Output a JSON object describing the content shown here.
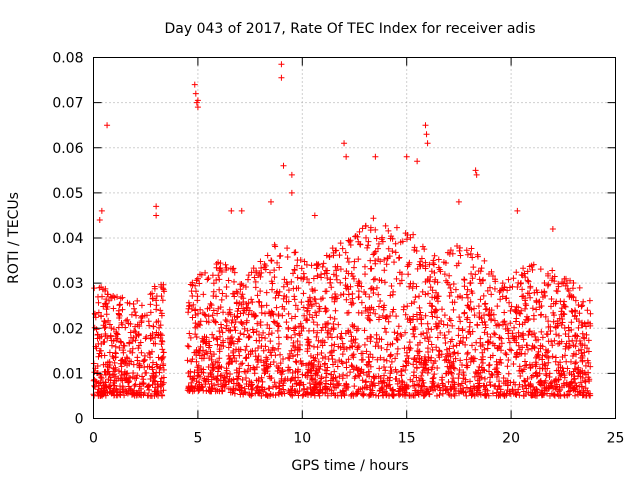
{
  "chart_data": {
    "type": "scatter",
    "title": "Day 043 of 2017, Rate Of TEC Index for receiver adis",
    "xlabel": "GPS time / hours",
    "ylabel": "ROTI / TECUs",
    "xlim": [
      0,
      25
    ],
    "ylim": [
      0,
      0.08
    ],
    "x_ticks": [
      "0",
      "5",
      "10",
      "15",
      "20",
      "25"
    ],
    "y_ticks": [
      "0",
      "0.01",
      "0.02",
      "0.03",
      "0.04",
      "0.05",
      "0.06",
      "0.07",
      "0.08"
    ],
    "grid": true,
    "legend": "none",
    "marker": "+",
    "color": "#ff0000",
    "density_profile": {
      "note_hours": [
        0.0,
        1.0,
        2.0,
        3.0,
        3.3,
        4.5,
        6.0,
        7.5,
        9.0,
        10.5,
        12.0,
        13.5,
        15.0,
        16.5,
        18.0,
        19.5,
        21.0,
        22.5,
        23.8
      ],
      "typical_low": [
        0.005,
        0.005,
        0.005,
        0.005,
        null,
        0.006,
        0.006,
        0.005,
        0.005,
        0.005,
        0.005,
        0.005,
        0.005,
        0.005,
        0.005,
        0.005,
        0.005,
        0.005,
        0.005
      ],
      "typical_high": [
        0.03,
        0.028,
        0.026,
        0.03,
        null,
        0.03,
        0.035,
        0.033,
        0.04,
        0.034,
        0.04,
        0.045,
        0.042,
        0.036,
        0.04,
        0.03,
        0.035,
        0.032,
        0.027
      ]
    },
    "data_gap_hours": [
      3.4,
      4.5
    ],
    "outliers": [
      {
        "x": 0.3,
        "y": 0.044
      },
      {
        "x": 0.4,
        "y": 0.046
      },
      {
        "x": 0.65,
        "y": 0.065
      },
      {
        "x": 3.0,
        "y": 0.047
      },
      {
        "x": 3.0,
        "y": 0.045
      },
      {
        "x": 4.85,
        "y": 0.074
      },
      {
        "x": 4.9,
        "y": 0.072
      },
      {
        "x": 4.95,
        "y": 0.07
      },
      {
        "x": 5.0,
        "y": 0.069
      },
      {
        "x": 5.0,
        "y": 0.0705
      },
      {
        "x": 9.0,
        "y": 0.0785
      },
      {
        "x": 9.0,
        "y": 0.0755
      },
      {
        "x": 9.1,
        "y": 0.056
      },
      {
        "x": 9.5,
        "y": 0.054
      },
      {
        "x": 9.5,
        "y": 0.05
      },
      {
        "x": 12.0,
        "y": 0.061
      },
      {
        "x": 12.1,
        "y": 0.058
      },
      {
        "x": 13.5,
        "y": 0.058
      },
      {
        "x": 15.0,
        "y": 0.058
      },
      {
        "x": 15.5,
        "y": 0.057
      },
      {
        "x": 15.9,
        "y": 0.065
      },
      {
        "x": 15.95,
        "y": 0.063
      },
      {
        "x": 16.0,
        "y": 0.061
      },
      {
        "x": 18.3,
        "y": 0.055
      },
      {
        "x": 18.35,
        "y": 0.054
      },
      {
        "x": 17.5,
        "y": 0.048
      },
      {
        "x": 20.3,
        "y": 0.046
      },
      {
        "x": 22.0,
        "y": 0.042
      },
      {
        "x": 10.6,
        "y": 0.045
      },
      {
        "x": 6.6,
        "y": 0.046
      },
      {
        "x": 7.1,
        "y": 0.046
      },
      {
        "x": 8.5,
        "y": 0.048
      }
    ]
  }
}
